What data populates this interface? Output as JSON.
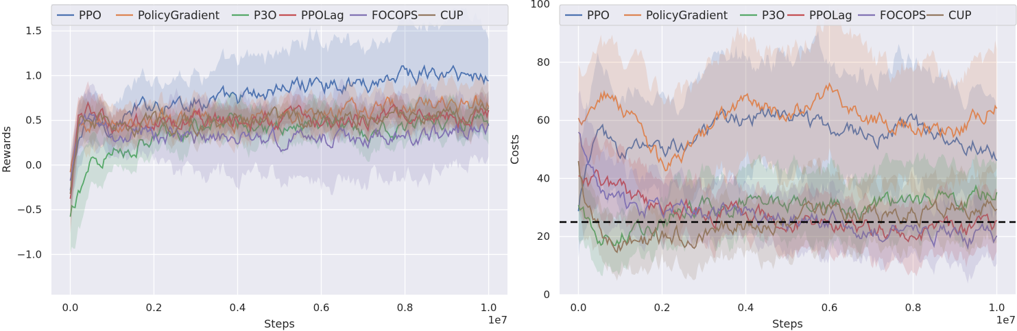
{
  "chart_data": [
    {
      "type": "line",
      "xlabel": "Steps",
      "ylabel": "Rewards",
      "x_offset_label": "1e7",
      "x": [
        0.0,
        0.02,
        0.05,
        0.1,
        0.2,
        0.3,
        0.4,
        0.5,
        0.6,
        0.7,
        0.8,
        0.9,
        1.0
      ],
      "xlim": [
        -0.045,
        1.045
      ],
      "ylim": [
        -1.45,
        1.8
      ],
      "x_ticks": [
        0.0,
        0.2,
        0.4,
        0.6,
        0.8,
        1.0
      ],
      "x_tick_labels": [
        "0.0",
        "0.2",
        "0.4",
        "0.6",
        "0.8",
        "1.0"
      ],
      "y_ticks": [
        -1.0,
        -0.5,
        0.0,
        0.5,
        1.0,
        1.5
      ],
      "y_tick_labels": [
        "−1.0",
        "−0.5",
        "0.0",
        "0.5",
        "1.0",
        "1.5"
      ],
      "grid": true,
      "legend_position": "top",
      "series": [
        {
          "name": "PPO",
          "color": "#4c72b0",
          "values": [
            -0.3,
            0.3,
            0.5,
            0.45,
            0.7,
            0.72,
            0.72,
            0.85,
            0.95,
            0.9,
            1.05,
            1.0,
            1.0
          ],
          "band": [
            0.25,
            0.3,
            0.3,
            0.25,
            0.3,
            0.35,
            0.35,
            0.45,
            0.45,
            0.45,
            0.5,
            0.55,
            0.55
          ]
        },
        {
          "name": "PolicyGradient",
          "color": "#dd8452",
          "values": [
            -0.1,
            0.35,
            0.5,
            0.45,
            0.48,
            0.5,
            0.5,
            0.52,
            0.55,
            0.6,
            0.65,
            0.7,
            0.7
          ],
          "band": [
            0.2,
            0.25,
            0.25,
            0.2,
            0.2,
            0.2,
            0.2,
            0.2,
            0.2,
            0.2,
            0.25,
            0.25,
            0.25
          ]
        },
        {
          "name": "P3O",
          "color": "#55a868",
          "values": [
            -0.6,
            -0.3,
            0.1,
            0.12,
            0.35,
            0.4,
            0.45,
            0.45,
            0.45,
            0.4,
            0.45,
            0.5,
            0.5
          ],
          "band": [
            0.4,
            0.4,
            0.3,
            0.2,
            0.2,
            0.2,
            0.2,
            0.2,
            0.2,
            0.2,
            0.2,
            0.2,
            0.2
          ]
        },
        {
          "name": "PPOLag",
          "color": "#c44e52",
          "values": [
            -0.4,
            0.55,
            0.6,
            0.45,
            0.5,
            0.5,
            0.5,
            0.5,
            0.5,
            0.5,
            0.55,
            0.55,
            0.55
          ],
          "band": [
            0.4,
            0.2,
            0.2,
            0.15,
            0.15,
            0.15,
            0.15,
            0.15,
            0.15,
            0.15,
            0.15,
            0.15,
            0.15
          ]
        },
        {
          "name": "FOCOPS",
          "color": "#8172b3",
          "values": [
            -0.2,
            0.4,
            0.45,
            0.35,
            0.35,
            0.3,
            0.3,
            0.3,
            0.3,
            0.3,
            0.35,
            0.35,
            0.4
          ],
          "band": [
            0.3,
            0.3,
            0.3,
            0.2,
            0.3,
            0.4,
            0.45,
            0.4,
            0.5,
            0.5,
            0.45,
            0.4,
            0.4
          ]
        },
        {
          "name": "CUP",
          "color": "#937860",
          "values": [
            -0.35,
            0.5,
            0.45,
            0.45,
            0.45,
            0.48,
            0.5,
            0.5,
            0.5,
            0.52,
            0.55,
            0.58,
            0.6
          ],
          "band": [
            0.3,
            0.2,
            0.2,
            0.15,
            0.15,
            0.15,
            0.15,
            0.15,
            0.15,
            0.15,
            0.15,
            0.15,
            0.15
          ]
        }
      ]
    },
    {
      "type": "line",
      "xlabel": "Steps",
      "ylabel": "Costs",
      "x_offset_label": "1e7",
      "x": [
        0.0,
        0.02,
        0.05,
        0.1,
        0.2,
        0.3,
        0.4,
        0.5,
        0.6,
        0.7,
        0.8,
        0.9,
        1.0
      ],
      "xlim": [
        -0.045,
        1.045
      ],
      "ylim": [
        0,
        100
      ],
      "x_ticks": [
        0.0,
        0.2,
        0.4,
        0.6,
        0.8,
        1.0
      ],
      "x_tick_labels": [
        "0.0",
        "0.2",
        "0.4",
        "0.6",
        "0.8",
        "1.0"
      ],
      "y_ticks": [
        0,
        20,
        40,
        60,
        80,
        100
      ],
      "y_tick_labels": [
        "0",
        "20",
        "40",
        "60",
        "80",
        "100"
      ],
      "grid": true,
      "legend_position": "top",
      "threshold": 25,
      "series": [
        {
          "name": "PPO",
          "color": "#4c72b0",
          "values": [
            28,
            45,
            55,
            50,
            50,
            55,
            62,
            62,
            58,
            55,
            58,
            55,
            50
          ],
          "band": [
            15,
            18,
            20,
            18,
            18,
            20,
            22,
            22,
            22,
            20,
            20,
            20,
            20
          ]
        },
        {
          "name": "PolicyGradient",
          "color": "#dd8452",
          "values": [
            60,
            62,
            70,
            65,
            45,
            55,
            68,
            62,
            70,
            60,
            58,
            55,
            68
          ],
          "band": [
            18,
            20,
            20,
            20,
            20,
            20,
            22,
            22,
            22,
            22,
            20,
            20,
            20
          ]
        },
        {
          "name": "P3O",
          "color": "#55a868",
          "values": [
            30,
            25,
            20,
            22,
            25,
            30,
            32,
            30,
            30,
            30,
            32,
            33,
            35
          ],
          "band": [
            12,
            12,
            10,
            10,
            10,
            12,
            12,
            12,
            12,
            12,
            12,
            12,
            12
          ]
        },
        {
          "name": "PPOLag",
          "color": "#c44e52",
          "values": [
            40,
            38,
            38,
            35,
            30,
            28,
            28,
            25,
            25,
            22,
            22,
            22,
            22
          ],
          "band": [
            12,
            12,
            12,
            12,
            10,
            10,
            10,
            10,
            10,
            10,
            10,
            10,
            10
          ]
        },
        {
          "name": "FOCOPS",
          "color": "#8172b3",
          "values": [
            55,
            45,
            35,
            30,
            30,
            28,
            28,
            25,
            25,
            22,
            22,
            20,
            20
          ],
          "band": [
            15,
            15,
            12,
            12,
            10,
            10,
            10,
            10,
            10,
            10,
            10,
            10,
            10
          ]
        },
        {
          "name": "CUP",
          "color": "#937860",
          "values": [
            45,
            30,
            22,
            18,
            20,
            22,
            25,
            25,
            28,
            28,
            28,
            30,
            30
          ],
          "band": [
            15,
            12,
            10,
            10,
            10,
            10,
            12,
            12,
            12,
            12,
            12,
            12,
            12
          ]
        }
      ]
    }
  ]
}
